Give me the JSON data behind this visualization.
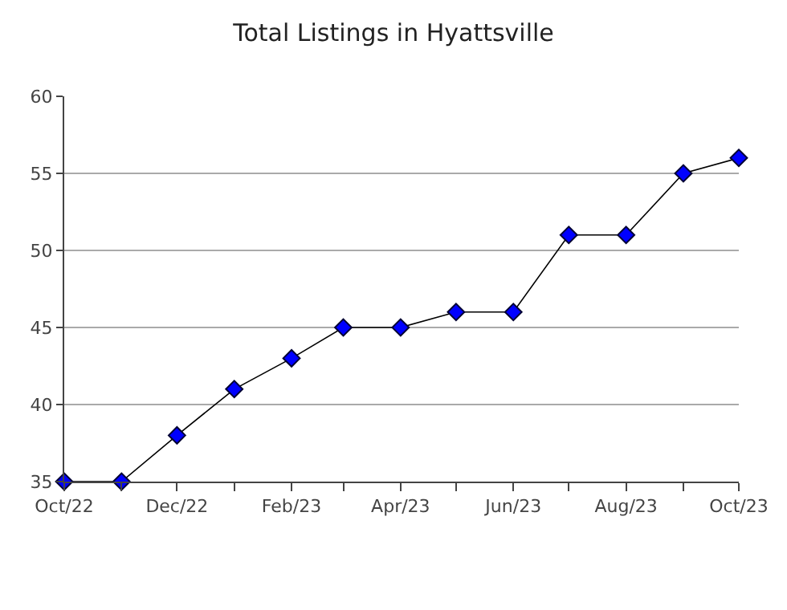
{
  "chart_data": {
    "type": "line",
    "title": "Total Listings in Hyattsville",
    "x": [
      "2022-10",
      "2022-11",
      "2022-12",
      "2023-01",
      "2023-02",
      "2023-03",
      "2023-04",
      "2023-05",
      "2023-06",
      "2023-07",
      "2023-08",
      "2023-09",
      "2023-10"
    ],
    "series": [
      {
        "color": "#0000ff",
        "values": [
          35,
          35,
          38,
          41,
          43,
          45,
          45,
          46,
          46,
          51,
          51,
          55,
          56
        ]
      }
    ],
    "xlim": [
      "2022-10",
      "2023-10"
    ],
    "xticks": [
      {
        "value": "2022-10",
        "label": "Oct/22"
      },
      {
        "value": "2022-11",
        "label": null
      },
      {
        "value": "2022-12",
        "label": "Dec/22"
      },
      {
        "value": "2023-01",
        "label": null
      },
      {
        "value": "2023-02",
        "label": "Feb/23"
      },
      {
        "value": "2023-03",
        "label": null
      },
      {
        "value": "2023-04",
        "label": "Apr/23"
      },
      {
        "value": "2023-05",
        "label": null
      },
      {
        "value": "2023-06",
        "label": "Jun/23"
      },
      {
        "value": "2023-07",
        "label": null
      },
      {
        "value": "2023-08",
        "label": "Aug/23"
      },
      {
        "value": "2023-09",
        "label": null
      },
      {
        "value": "2023-10",
        "label": "Oct/23"
      }
    ],
    "ylim": [
      35,
      60
    ],
    "yticks": [
      35,
      40,
      45,
      50,
      55,
      60
    ],
    "grid": "y",
    "marker": "diamond",
    "line_style": "solid"
  }
}
